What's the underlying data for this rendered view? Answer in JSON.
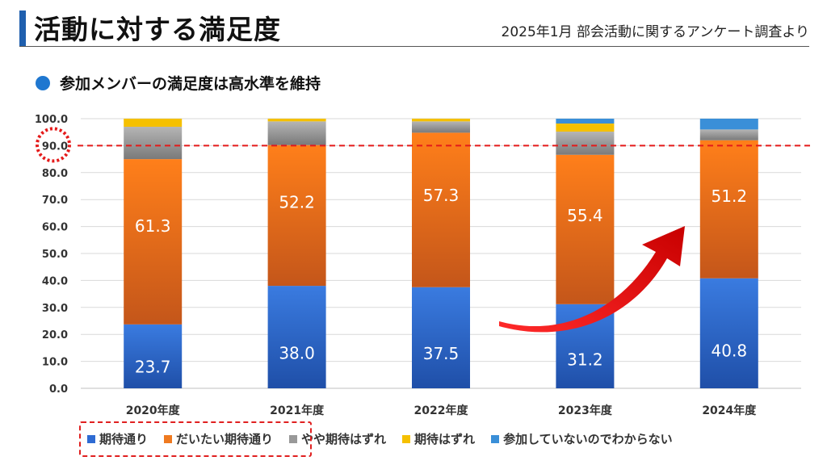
{
  "header": {
    "title": "活動に対する満足度",
    "source": "2025年1月 部会活動に関するアンケート調査より",
    "accent_color": "#1f5fae"
  },
  "subtitle": {
    "text": "参加メンバーの満足度は高水準を維持",
    "bullet_color": "#1f77d0"
  },
  "chart_data": {
    "type": "bar",
    "stacked": true,
    "categories": [
      "2020年度",
      "2021年度",
      "2022年度",
      "2023年度",
      "2024年度"
    ],
    "y_ticks": [
      "0.0",
      "10.0",
      "20.0",
      "30.0",
      "40.0",
      "50.0",
      "60.0",
      "70.0",
      "80.0",
      "90.0",
      "100.0"
    ],
    "ylim": [
      0,
      100
    ],
    "grid": true,
    "legend_position": "bottom",
    "reference_line": 90,
    "series": [
      {
        "name": "期待通り",
        "values": [
          23.7,
          38.0,
          37.5,
          31.2,
          40.8
        ],
        "color": "#2e6bd3",
        "labels": [
          "23.7",
          "38.0",
          "37.5",
          "31.2",
          "40.8"
        ]
      },
      {
        "name": "だいたい期待通り",
        "values": [
          61.3,
          52.2,
          57.3,
          55.4,
          51.2
        ],
        "color": "#ef7a20",
        "labels": [
          "61.3",
          "52.2",
          "57.3",
          "55.4",
          "51.2"
        ]
      },
      {
        "name": "やや期待はずれ",
        "values": [
          12.0,
          8.8,
          4.2,
          8.6,
          4.0
        ],
        "color": "#999999",
        "labels": []
      },
      {
        "name": "期待はずれ",
        "values": [
          3.0,
          1.0,
          1.0,
          3.0,
          0.0
        ],
        "color": "#f5c000",
        "labels": []
      },
      {
        "name": "参加していないのでわからない",
        "values": [
          0.0,
          0.0,
          0.0,
          1.8,
          4.0
        ],
        "color": "#3a8fd8",
        "labels": []
      }
    ]
  }
}
